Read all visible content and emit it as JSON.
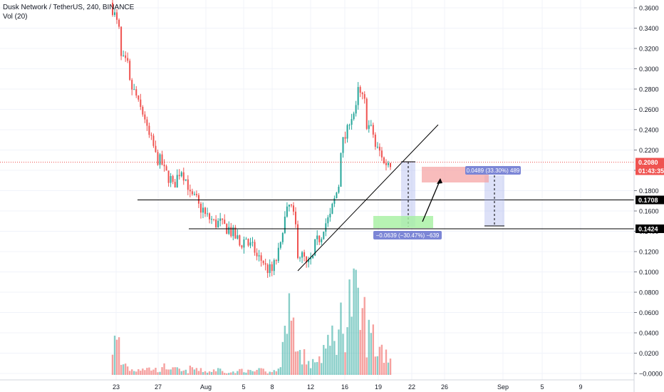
{
  "legend": {
    "symbol": "Dusk Network / TetherUS, 240, BINANCE",
    "volume": "Vol (20)"
  },
  "colors": {
    "up": "#26a69a",
    "down": "#ef5350",
    "grid": "#f0f3fa",
    "axis_text": "#131722",
    "price_line": "#ef5350",
    "level_line": "#000000",
    "measure_fill": "#9fa8ec",
    "measure_label": "#7c86d6",
    "target_zone": "#f5a0a0",
    "stop_zone": "#a5f0a0"
  },
  "chart_data": {
    "type": "candlestick",
    "y_axis": {
      "min": -0.0,
      "max": 0.37,
      "ticks": [
        "0.3600",
        "0.3400",
        "0.3200",
        "0.3000",
        "0.2800",
        "0.2600",
        "0.2400",
        "0.2200",
        "0.2000",
        "0.1800",
        "0.1600",
        "0.1400",
        "0.1200",
        "0.1000",
        "0.0800",
        "0.0600",
        "0.0400",
        "0.0200",
        "−0.0000"
      ],
      "last_price": "0.2080",
      "countdown": "01:43:35",
      "levels": [
        "0.1708",
        "0.1424"
      ]
    },
    "x_axis": {
      "ticks": [
        "23",
        "27",
        "Aug",
        "5",
        "8",
        "12",
        "16",
        "19",
        "22",
        "26",
        "Sep",
        "5",
        "9"
      ]
    },
    "price_path": [
      [
        0.365,
        0.36
      ],
      [
        0.33,
        0.31
      ],
      [
        0.3,
        0.285
      ],
      [
        0.27,
        0.265
      ],
      [
        0.25,
        0.24
      ],
      [
        0.22,
        0.215
      ],
      [
        0.205,
        0.2
      ],
      [
        0.19,
        0.18
      ],
      [
        0.2,
        0.205
      ],
      [
        0.185,
        0.175
      ],
      [
        0.17,
        0.165
      ],
      [
        0.16,
        0.155
      ],
      [
        0.15,
        0.148
      ],
      [
        0.148,
        0.145
      ],
      [
        0.142,
        0.14
      ],
      [
        0.13,
        0.125
      ],
      [
        0.135,
        0.128
      ],
      [
        0.12,
        0.115
      ],
      [
        0.11,
        0.105
      ],
      [
        0.1,
        0.102
      ],
      [
        0.125,
        0.14
      ],
      [
        0.165,
        0.17
      ],
      [
        0.135,
        0.12
      ],
      [
        0.11,
        0.105
      ],
      [
        0.115,
        0.125
      ],
      [
        0.14,
        0.145
      ],
      [
        0.155,
        0.16
      ],
      [
        0.19,
        0.22
      ],
      [
        0.24,
        0.25
      ],
      [
        0.26,
        0.28
      ],
      [
        0.265,
        0.25
      ],
      [
        0.235,
        0.225
      ],
      [
        0.215,
        0.205
      ],
      [
        0.21,
        0.208
      ]
    ],
    "volume_path": [
      0.035,
      0.012,
      0.006,
      0.008,
      0.007,
      0.006,
      0.009,
      0.006,
      0.004,
      0.007,
      0.005,
      0.004,
      0.006,
      0.004,
      0.003,
      0.006,
      0.004,
      0.005,
      0.003,
      0.006,
      0.085,
      0.05,
      0.025,
      0.012,
      0.02,
      0.03,
      0.045,
      0.06,
      0.085,
      0.065,
      0.045,
      0.03,
      0.025,
      0.022
    ],
    "annotations": {
      "trendline": [
        [
          0.1025,
          0
        ],
        [
          0.245,
          1
        ]
      ],
      "short_measure_label": "−0.0639 (−30.47%) −639",
      "long_measure_label": "0.0489 (33.30%) 489"
    }
  }
}
